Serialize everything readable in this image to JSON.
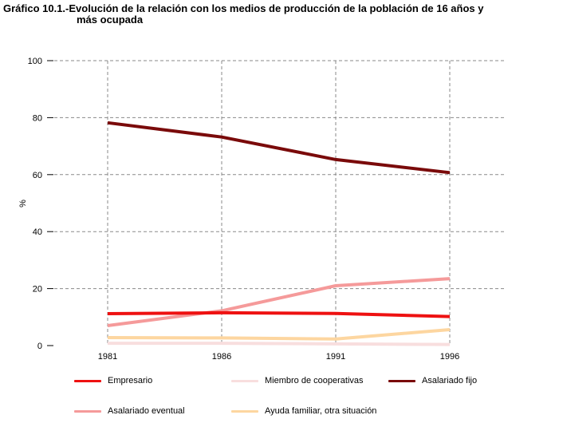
{
  "title": {
    "line1": "Gráfico 10.1.-Evolución de la relación con los medios de producción de la población de 16 años y",
    "line2": "más ocupada"
  },
  "chart_data": {
    "type": "line",
    "x": [
      "1981",
      "1986",
      "1991",
      "1996"
    ],
    "ylabel": "%",
    "xlabel": "",
    "ylim": [
      0,
      100
    ],
    "yticks": [
      "0",
      "20",
      "40",
      "60",
      "80",
      "100"
    ],
    "grid": true,
    "legend_position": "bottom",
    "series": [
      {
        "name": "Empresario",
        "color": "#ee1111",
        "values": [
          11.2,
          11.5,
          11.3,
          10.2
        ]
      },
      {
        "name": "Miembro de cooperativas",
        "color": "#f8dede",
        "values": [
          0.8,
          0.8,
          0.6,
          0.4
        ]
      },
      {
        "name": "Asalariado fijo",
        "color": "#7a0a0a",
        "values": [
          78.2,
          73.2,
          65.3,
          60.7
        ]
      },
      {
        "name": "Asalariado eventual",
        "color": "#f59a9a",
        "values": [
          7.0,
          12.2,
          21.0,
          23.5
        ]
      },
      {
        "name": "Ayuda familiar, otra situación",
        "color": "#fdd6a0",
        "values": [
          2.8,
          2.7,
          2.3,
          5.6
        ]
      }
    ]
  }
}
